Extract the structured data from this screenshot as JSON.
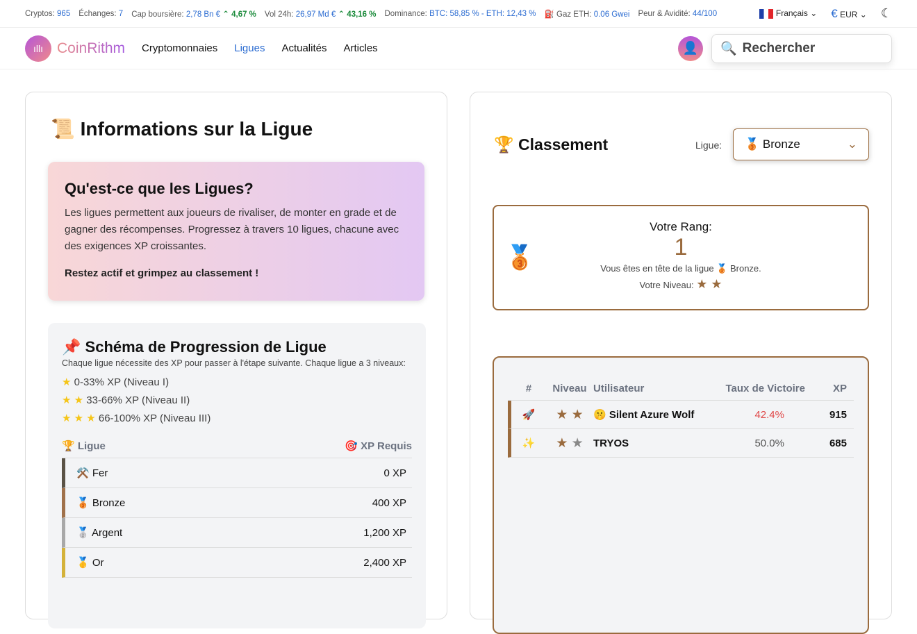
{
  "topbar": {
    "cryptos_label": "Cryptos:",
    "cryptos": "965",
    "exchanges_label": "Échanges:",
    "exchanges": "7",
    "cap_label": "Cap boursière:",
    "cap": "2,78 Bn €",
    "cap_change": "4,67 %",
    "vol_label": "Vol 24h:",
    "vol": "26,97 Md €",
    "vol_change": "43,16 %",
    "dom_label": "Dominance:",
    "dom": "BTC: 58,85 % - ETH: 12,43 %",
    "gas_label": "Gaz ETH:",
    "gas": "0.06 Gwei",
    "fear_label": "Peur & Avidité:",
    "fear": "44/100",
    "language": "Français",
    "currency": "EUR"
  },
  "nav": {
    "logo": "CoinRithm",
    "items": [
      "Cryptomonnaies",
      "Ligues",
      "Actualités",
      "Articles"
    ],
    "active": "Ligues",
    "search_placeholder": "Rechercher"
  },
  "left": {
    "title": "Informations sur la Ligue",
    "info_title": "Qu'est-ce que les Ligues?",
    "info_text": "Les ligues permettent aux joueurs de rivaliser, de monter en grade et de gagner des récompenses. Progressez à travers 10 ligues, chacune avec des exigences XP croissantes.",
    "info_cta": "Restez actif et grimpez au classement !",
    "prog_title": "Schéma de Progression de Ligue",
    "prog_sub": "Chaque ligue nécessite des XP pour passer à l'étape suivante. Chaque ligue a 3 niveaux:",
    "levels": [
      "0-33% XP (Niveau I)",
      "33-66% XP (Niveau II)",
      "66-100% XP (Niveau III)"
    ],
    "col_league": "Ligue",
    "col_xp": "XP Requis",
    "leagues": [
      {
        "icon": "⚒️",
        "name": "Fer",
        "xp": "0 XP",
        "color": "#5a5245"
      },
      {
        "icon": "🥉",
        "name": "Bronze",
        "xp": "400 XP",
        "color": "#a0714a"
      },
      {
        "icon": "🥈",
        "name": "Argent",
        "xp": "1,200 XP",
        "color": "#a8a8a8"
      },
      {
        "icon": "🥇",
        "name": "Or",
        "xp": "2,400 XP",
        "color": "#d4b23a"
      }
    ]
  },
  "right": {
    "title": "Classement",
    "league_label": "Ligue:",
    "league_selected": "Bronze",
    "rank_title": "Votre Rang:",
    "rank": "1",
    "rank_text": "Vous êtes en tête de la ligue 🥉 Bronze.",
    "level_label": "Votre Niveau:",
    "headers": [
      "#",
      "Niveau",
      "Utilisateur",
      "Taux de Victoire",
      "XP"
    ],
    "rows": [
      {
        "icon": "🚀",
        "stars": 2,
        "avatar": "🤫",
        "user": "Silent Azure Wolf",
        "rate": "42.4%",
        "xp": "915",
        "rate_color": "#e04848"
      },
      {
        "icon": "✨",
        "stars": 1,
        "avatar": "",
        "user": "TRYOS",
        "rate": "50.0%",
        "xp": "685",
        "rate_color": "#555"
      }
    ]
  }
}
